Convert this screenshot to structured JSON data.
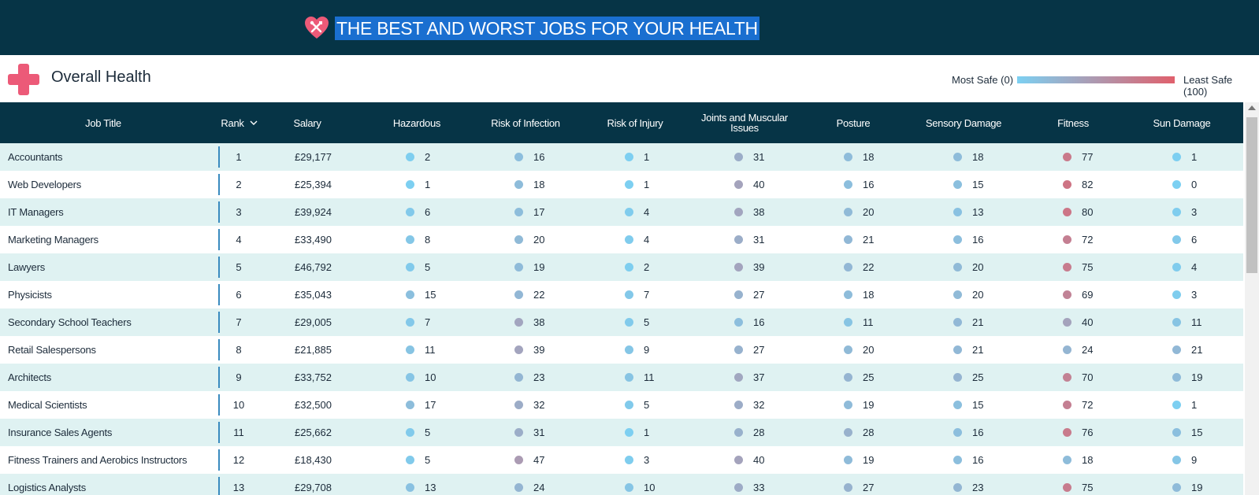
{
  "banner": {
    "title": "THE BEST AND WORST JOBS FOR YOUR HEALTH",
    "heart_color": "#ec5a78"
  },
  "section": {
    "title": "Overall Health",
    "icon": "medical-cross-icon"
  },
  "legend": {
    "most": "Most Safe (0)",
    "least": "Least Safe (100)",
    "color_low": "#7cd0f2",
    "color_high": "#e0606c"
  },
  "columns": {
    "job": "Job Title",
    "rank": "Rank",
    "salary": "Salary",
    "hazardous": "Hazardous",
    "infection": "Risk of Infection",
    "injury": "Risk of Injury",
    "joints": "Joints and Muscular Issues",
    "posture": "Posture",
    "sensory": "Sensory Damage",
    "fitness": "Fitness",
    "sun": "Sun Damage"
  },
  "rows": [
    {
      "job": "Accountants",
      "rank": "1",
      "salary": "£29,177",
      "values": [
        2,
        16,
        1,
        31,
        18,
        18,
        77,
        1
      ]
    },
    {
      "job": "Web Developers",
      "rank": "2",
      "salary": "£25,394",
      "values": [
        1,
        18,
        1,
        40,
        16,
        15,
        82,
        0
      ]
    },
    {
      "job": "IT Managers",
      "rank": "3",
      "salary": "£39,924",
      "values": [
        6,
        17,
        4,
        38,
        20,
        13,
        80,
        3
      ]
    },
    {
      "job": "Marketing Managers",
      "rank": "4",
      "salary": "£33,490",
      "values": [
        8,
        20,
        4,
        31,
        21,
        16,
        72,
        6
      ]
    },
    {
      "job": "Lawyers",
      "rank": "5",
      "salary": "£46,792",
      "values": [
        5,
        19,
        2,
        39,
        22,
        20,
        75,
        4
      ]
    },
    {
      "job": "Physicists",
      "rank": "6",
      "salary": "£35,043",
      "values": [
        15,
        22,
        7,
        27,
        18,
        20,
        69,
        3
      ]
    },
    {
      "job": "Secondary School Teachers",
      "rank": "7",
      "salary": "£29,005",
      "values": [
        7,
        38,
        5,
        16,
        11,
        21,
        40,
        11
      ]
    },
    {
      "job": "Retail Salespersons",
      "rank": "8",
      "salary": "£21,885",
      "values": [
        11,
        39,
        9,
        27,
        20,
        21,
        24,
        21
      ]
    },
    {
      "job": "Architects",
      "rank": "9",
      "salary": "£33,752",
      "values": [
        10,
        23,
        11,
        37,
        25,
        25,
        70,
        19
      ]
    },
    {
      "job": "Medical Scientists",
      "rank": "10",
      "salary": "£32,500",
      "values": [
        17,
        32,
        5,
        32,
        19,
        15,
        72,
        1
      ]
    },
    {
      "job": "Insurance Sales Agents",
      "rank": "11",
      "salary": "£25,662",
      "values": [
        5,
        31,
        1,
        28,
        28,
        16,
        76,
        15
      ]
    },
    {
      "job": "Fitness Trainers and Aerobics Instructors",
      "rank": "12",
      "salary": "£18,430",
      "values": [
        5,
        47,
        3,
        40,
        19,
        16,
        18,
        9
      ]
    },
    {
      "job": "Logistics Analysts",
      "rank": "13",
      "salary": "£29,708",
      "values": [
        13,
        24,
        10,
        33,
        27,
        23,
        75,
        19
      ]
    }
  ]
}
